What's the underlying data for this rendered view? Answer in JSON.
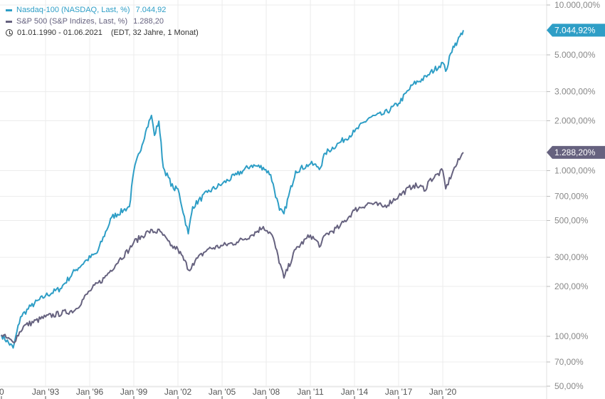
{
  "legend": {
    "series": [
      {
        "label": "Nasdaq-100 (NASDAQ, Last, %)",
        "value": "7.044,92",
        "color": "#2e9ec6"
      },
      {
        "label": "S&P 500 (S&P Indizes, Last, %)",
        "value": "1.288,20",
        "color": "#66627f"
      }
    ],
    "date_range": "01.01.1990 - 01.06.2021",
    "range_note": "(EDT, 32 Jahre, 1 Monat)",
    "range_icon": "clock-icon"
  },
  "chart_data": {
    "type": "line",
    "y_scale": "log",
    "ylim": [
      50,
      10000
    ],
    "xlim": [
      1990,
      2026.7
    ],
    "grid": true,
    "y_ticks": [
      {
        "value": 10000,
        "label": "10.000,00%"
      },
      {
        "value": 5000,
        "label": "5.000,00%"
      },
      {
        "value": 3000,
        "label": "3.000,00%"
      },
      {
        "value": 2000,
        "label": "2.000,00%"
      },
      {
        "value": 1000,
        "label": "1.000,00%"
      },
      {
        "value": 700,
        "label": "700,00%"
      },
      {
        "value": 500,
        "label": "500,00%"
      },
      {
        "value": 300,
        "label": "300,00%"
      },
      {
        "value": 200,
        "label": "200,00%"
      },
      {
        "value": 100,
        "label": "100,00%"
      },
      {
        "value": 70,
        "label": "70,00%"
      },
      {
        "value": 50,
        "label": "50,00%"
      }
    ],
    "x_ticks": [
      {
        "value": 1990,
        "label": "0"
      },
      {
        "value": 1993,
        "label": "Jan '93"
      },
      {
        "value": 1996,
        "label": "Jan '96"
      },
      {
        "value": 1999,
        "label": "Jan '99"
      },
      {
        "value": 2002,
        "label": "Jan '02"
      },
      {
        "value": 2005,
        "label": "Jan '05"
      },
      {
        "value": 2008,
        "label": "Jan '08"
      },
      {
        "value": 2011,
        "label": "Jan '11"
      },
      {
        "value": 2014,
        "label": "Jan '14"
      },
      {
        "value": 2017,
        "label": "Jan '17"
      },
      {
        "value": 2020,
        "label": "Jan '20"
      }
    ],
    "series": [
      {
        "name": "Nasdaq-100",
        "color": "#2e9ec6",
        "last_label": "7.044,92%",
        "last_value": 7044.92,
        "x": [
          1990,
          1990.8,
          1991.3,
          1992,
          1993,
          1994,
          1995,
          1995.8,
          1996.5,
          1997.5,
          1998.3,
          1998.7,
          1999,
          1999.8,
          2000.2,
          2000.4,
          2000.7,
          2001,
          2001.7,
          2002,
          2002.7,
          2003,
          2004,
          2005,
          2006,
          2007,
          2007.8,
          2008.3,
          2008.9,
          2009.2,
          2010,
          2011,
          2011.7,
          2012,
          2013,
          2014,
          2015,
          2016,
          2017,
          2018,
          2018.9,
          2019,
          2020,
          2020.2,
          2020.7,
          2021,
          2021.4
        ],
        "y": [
          102,
          85,
          131,
          152,
          176,
          194,
          249,
          289,
          319,
          523,
          577,
          606,
          995,
          1715,
          2155,
          1633,
          1990,
          1046,
          777,
          777,
          416,
          606,
          739,
          832,
          946,
          1077,
          1046,
          946,
          577,
          549,
          995,
          1099,
          1046,
          1274,
          1479,
          1715,
          2090,
          2198,
          2547,
          3334,
          3680,
          3787,
          4485,
          3981,
          5632,
          6035,
          7044.92
        ]
      },
      {
        "name": "S&P 500",
        "color": "#66627f",
        "last_label": "1.288,20%",
        "last_value": 1288.2,
        "x": [
          1990,
          1990.8,
          1991.5,
          1993,
          1995,
          1996,
          1997,
          1998,
          1998.7,
          1999,
          2000,
          2000.8,
          2001.5,
          2002,
          2002.8,
          2003,
          2004,
          2005,
          2006,
          2007,
          2007.8,
          2008.4,
          2009.2,
          2010,
          2011,
          2011.7,
          2012,
          2013,
          2014,
          2015,
          2016,
          2017,
          2018,
          2018.9,
          2019,
          2020,
          2020.2,
          2020.7,
          2021.4
        ],
        "y": [
          102,
          92,
          115,
          131,
          144,
          188,
          225,
          289,
          335,
          370,
          429,
          429,
          352,
          335,
          249,
          275,
          335,
          352,
          370,
          408,
          459,
          408,
          225,
          335,
          408,
          352,
          408,
          459,
          577,
          637,
          606,
          703,
          816,
          777,
          858,
          998,
          777,
          998,
          1288.2
        ]
      }
    ]
  }
}
